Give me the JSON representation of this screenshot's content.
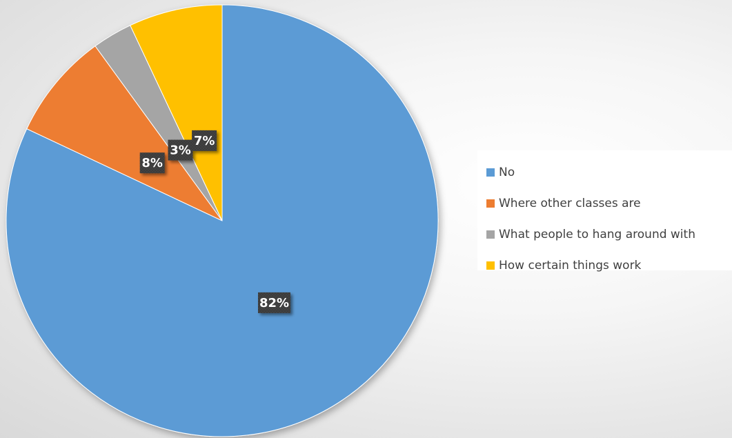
{
  "chart_data": {
    "type": "pie",
    "categories": [
      "No",
      "Where other classes are",
      "What people to hang around with",
      "How certain things work"
    ],
    "values": [
      82,
      8,
      3,
      7
    ],
    "data_labels": [
      "82%",
      "8%",
      "3%",
      "7%"
    ],
    "colors": [
      "#5b9bd5",
      "#ed7d31",
      "#a5a5a5",
      "#ffc000"
    ],
    "start_angle": "12 o'clock",
    "direction": "clockwise",
    "legend_position": "right"
  }
}
